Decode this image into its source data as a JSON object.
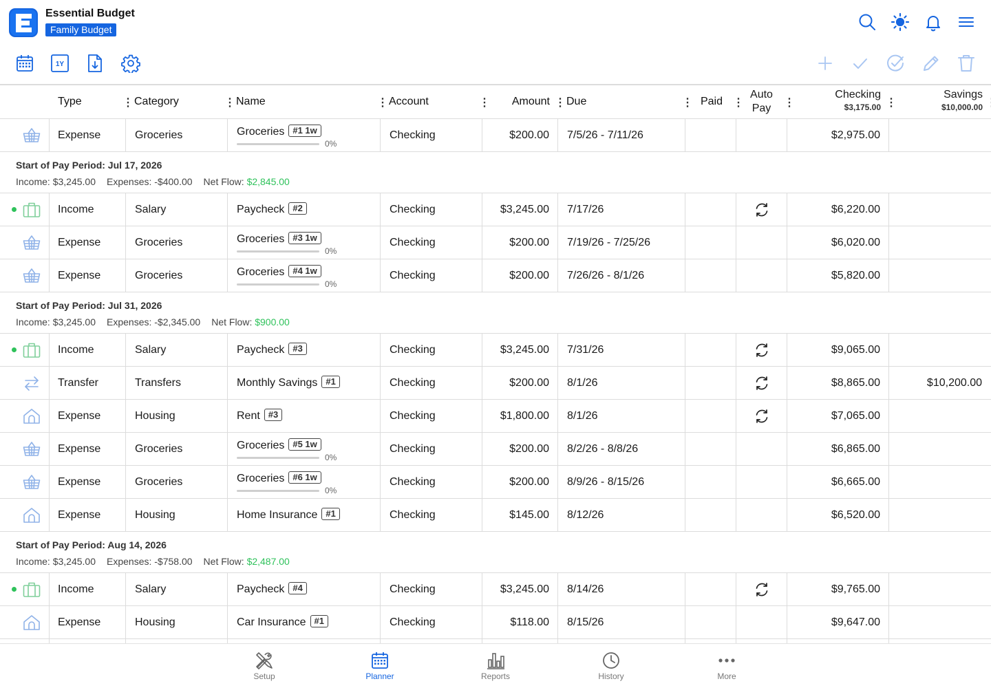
{
  "app": {
    "title": "Essential Budget",
    "budget_name": "Family Budget",
    "accent": "#1565e0"
  },
  "header_icons": [
    "search-icon",
    "theme-sun-icon",
    "bell-icon",
    "menu-icon"
  ],
  "toolbar_icons": [
    "calendar-icon",
    "one-year-icon",
    "export-icon",
    "settings-icon",
    "add-icon",
    "check-icon",
    "check-circle-icon",
    "edit-icon",
    "trash-icon"
  ],
  "one_year_label": "1Y",
  "columns": {
    "type": "Type",
    "category": "Category",
    "name": "Name",
    "account": "Account",
    "amount": "Amount",
    "due": "Due",
    "paid": "Paid",
    "auto_pay_1": "Auto",
    "auto_pay_2": "Pay",
    "checking": "Checking",
    "checking_balance": "$3,175.00",
    "savings": "Savings",
    "savings_balance": "$10,000.00"
  },
  "rows": [
    {
      "icon": "basket-icon",
      "type": "Expense",
      "category": "Groceries",
      "name": "Groceries",
      "tag": "#1 1w",
      "progress": "0%",
      "progress_value": 0,
      "account": "Checking",
      "amount": "$200.00",
      "due": "7/5/26 - 7/11/26",
      "auto": false,
      "checking": "$2,975.00",
      "savings": ""
    },
    {
      "icon": "briefcase-icon",
      "dot": true,
      "type": "Income",
      "category": "Salary",
      "name": "Paycheck",
      "tag": "#2",
      "account": "Checking",
      "amount": "$3,245.00",
      "due": "7/17/26",
      "auto": true,
      "checking": "$6,220.00",
      "savings": ""
    },
    {
      "icon": "basket-icon",
      "type": "Expense",
      "category": "Groceries",
      "name": "Groceries",
      "tag": "#3 1w",
      "progress": "0%",
      "progress_value": 0,
      "account": "Checking",
      "amount": "$200.00",
      "due": "7/19/26 - 7/25/26",
      "auto": false,
      "checking": "$6,020.00",
      "savings": ""
    },
    {
      "icon": "basket-icon",
      "type": "Expense",
      "category": "Groceries",
      "name": "Groceries",
      "tag": "#4 1w",
      "progress": "0%",
      "progress_value": 0,
      "account": "Checking",
      "amount": "$200.00",
      "due": "7/26/26 - 8/1/26",
      "auto": false,
      "checking": "$5,820.00",
      "savings": ""
    },
    {
      "icon": "briefcase-icon",
      "dot": true,
      "type": "Income",
      "category": "Salary",
      "name": "Paycheck",
      "tag": "#3",
      "account": "Checking",
      "amount": "$3,245.00",
      "due": "7/31/26",
      "auto": true,
      "checking": "$9,065.00",
      "savings": ""
    },
    {
      "icon": "transfer-icon",
      "type": "Transfer",
      "category": "Transfers",
      "name": "Monthly Savings",
      "tag": "#1",
      "account": "Checking",
      "amount": "$200.00",
      "due": "8/1/26",
      "auto": true,
      "checking": "$8,865.00",
      "savings": "$10,200.00"
    },
    {
      "icon": "house-icon",
      "type": "Expense",
      "category": "Housing",
      "name": "Rent",
      "tag": "#3",
      "account": "Checking",
      "amount": "$1,800.00",
      "due": "8/1/26",
      "auto": true,
      "checking": "$7,065.00",
      "savings": ""
    },
    {
      "icon": "basket-icon",
      "type": "Expense",
      "category": "Groceries",
      "name": "Groceries",
      "tag": "#5 1w",
      "progress": "0%",
      "progress_value": 0,
      "account": "Checking",
      "amount": "$200.00",
      "due": "8/2/26 - 8/8/26",
      "auto": false,
      "checking": "$6,865.00",
      "savings": ""
    },
    {
      "icon": "basket-icon",
      "type": "Expense",
      "category": "Groceries",
      "name": "Groceries",
      "tag": "#6 1w",
      "progress": "0%",
      "progress_value": 0,
      "account": "Checking",
      "amount": "$200.00",
      "due": "8/9/26 - 8/15/26",
      "auto": false,
      "checking": "$6,665.00",
      "savings": ""
    },
    {
      "icon": "house-icon",
      "type": "Expense",
      "category": "Housing",
      "name": "Home Insurance",
      "tag": "#1",
      "account": "Checking",
      "amount": "$145.00",
      "due": "8/12/26",
      "auto": false,
      "checking": "$6,520.00",
      "savings": ""
    },
    {
      "icon": "briefcase-icon",
      "dot": true,
      "type": "Income",
      "category": "Salary",
      "name": "Paycheck",
      "tag": "#4",
      "account": "Checking",
      "amount": "$3,245.00",
      "due": "8/14/26",
      "auto": true,
      "checking": "$9,765.00",
      "savings": ""
    },
    {
      "icon": "house-icon",
      "type": "Expense",
      "category": "Housing",
      "name": "Car Insurance",
      "tag": "#1",
      "account": "Checking",
      "amount": "$118.00",
      "due": "8/15/26",
      "auto": false,
      "checking": "$9,647.00",
      "savings": ""
    }
  ],
  "periods": [
    {
      "title": "Start of Pay Period: Jul 17, 2026",
      "income_label": "Income:",
      "income": "$3,245.00",
      "expenses_label": "Expenses:",
      "expenses": "-$400.00",
      "net_label": "Net Flow:",
      "net": "$2,845.00"
    },
    {
      "title": "Start of Pay Period: Jul 31, 2026",
      "income_label": "Income:",
      "income": "$3,245.00",
      "expenses_label": "Expenses:",
      "expenses": "-$2,345.00",
      "net_label": "Net Flow:",
      "net": "$900.00"
    },
    {
      "title": "Start of Pay Period: Aug 14, 2026",
      "income_label": "Income:",
      "income": "$3,245.00",
      "expenses_label": "Expenses:",
      "expenses": "-$758.00",
      "net_label": "Net Flow:",
      "net": "$2,487.00"
    }
  ],
  "tabs": [
    {
      "label": "Setup",
      "icon": "tools-icon",
      "active": false
    },
    {
      "label": "Planner",
      "icon": "calendar-icon",
      "active": true
    },
    {
      "label": "Reports",
      "icon": "bar-chart-icon",
      "active": false
    },
    {
      "label": "History",
      "icon": "clock-icon",
      "active": false
    },
    {
      "label": "More",
      "icon": "more-icon",
      "active": false
    }
  ]
}
